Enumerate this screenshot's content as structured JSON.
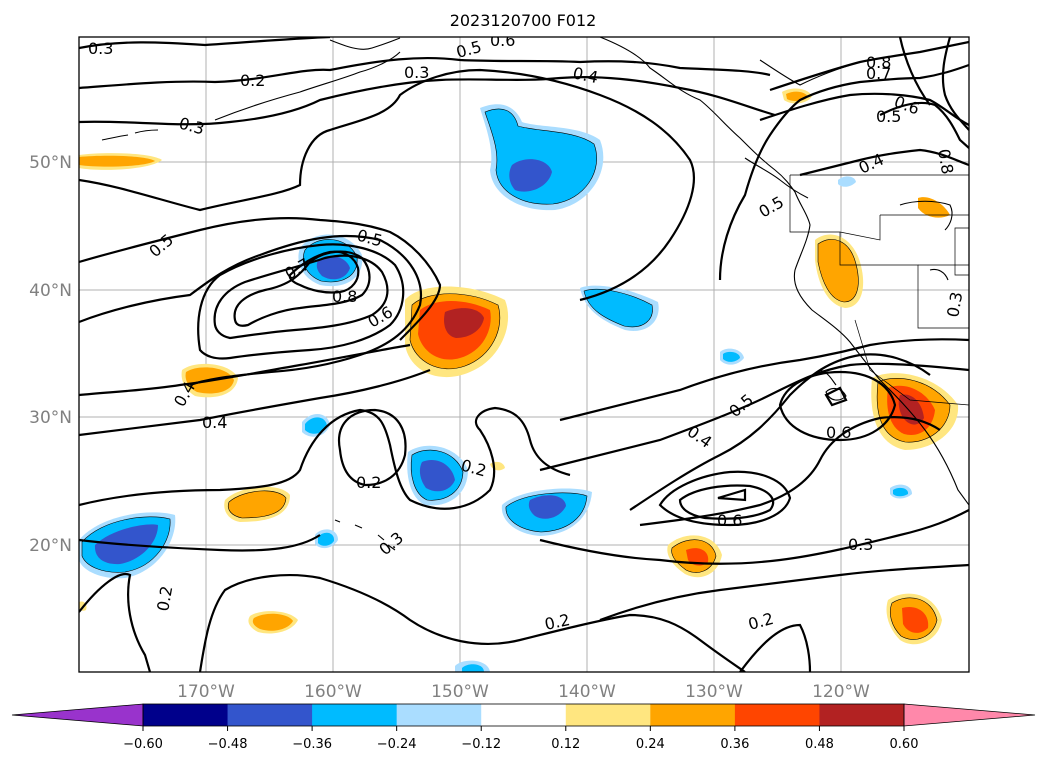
{
  "title": "2023120700 F012",
  "map": {
    "lat_labels": [
      "50°N",
      "40°N",
      "30°N",
      "20°N"
    ],
    "lon_labels": [
      "170°W",
      "160°W",
      "150°W",
      "140°W",
      "130°W",
      "120°W"
    ]
  },
  "colorbar": {
    "ticks": [
      "−0.60",
      "−0.48",
      "−0.36",
      "−0.24",
      "−0.12",
      "0.12",
      "0.24",
      "0.36",
      "0.48",
      "0.60"
    ],
    "colors": [
      "#9933cc",
      "#00008b",
      "#3355cc",
      "#00bbff",
      "#aaddff",
      "#ffffff",
      "#ffe680",
      "#ffa500",
      "#ff4500",
      "#b22222",
      "#ff88aa"
    ]
  },
  "contour_labels": [
    {
      "text": "0.3"
    },
    {
      "text": "0.2"
    },
    {
      "text": "0.3"
    },
    {
      "text": "0.5"
    },
    {
      "text": "0.6"
    },
    {
      "text": "0.3"
    },
    {
      "text": "0.4"
    },
    {
      "text": "0.8"
    },
    {
      "text": "0.7"
    },
    {
      "text": "0.6"
    },
    {
      "text": "0.5"
    },
    {
      "text": "0.8"
    },
    {
      "text": "0.4"
    },
    {
      "text": "0.5"
    },
    {
      "text": "0.5"
    },
    {
      "text": "0.5"
    },
    {
      "text": "0.7"
    },
    {
      "text": "0.8"
    },
    {
      "text": "0.6"
    },
    {
      "text": "0.4"
    },
    {
      "text": "0.4"
    },
    {
      "text": "0.2"
    },
    {
      "text": "0.2"
    },
    {
      "text": "0.3"
    },
    {
      "text": "0.5"
    },
    {
      "text": "0.4"
    },
    {
      "text": "0.6"
    },
    {
      "text": "0.6"
    },
    {
      "text": "0.3"
    },
    {
      "text": "0.2"
    },
    {
      "text": "0.2"
    },
    {
      "text": "0.2"
    },
    {
      "text": "0.3"
    }
  ]
}
